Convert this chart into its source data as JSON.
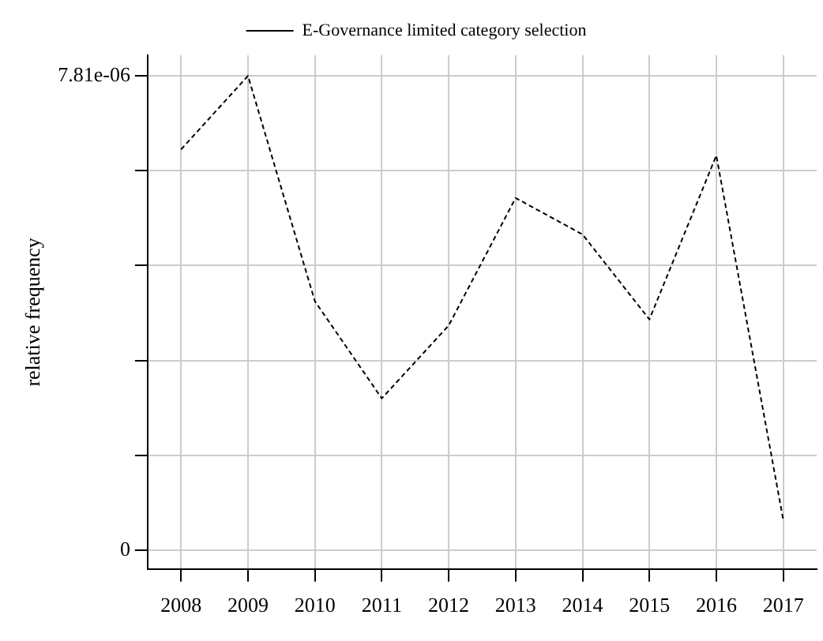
{
  "chart_data": {
    "type": "line",
    "ylabel": "relative frequency",
    "categories": [
      "2008",
      "2009",
      "2010",
      "2011",
      "2012",
      "2013",
      "2014",
      "2015",
      "2016",
      "2017"
    ],
    "series": [
      {
        "name": "E-Governance limited category selection",
        "color": "#000000",
        "values": [
          6.6e-06,
          7.81e-06,
          4.1e-06,
          2.5e-06,
          3.7e-06,
          5.8e-06,
          5.2e-06,
          3.8e-06,
          6.5e-06,
          5e-07
        ]
      }
    ],
    "ylim": [
      -3.1e-07,
      8.15e-06
    ],
    "yticks": [
      0,
      {
        "value": 1.562e-06,
        "label": null
      },
      {
        "value": 3.124e-06,
        "label": null
      },
      {
        "value": 4.686e-06,
        "label": null
      },
      {
        "value": 6.248e-06,
        "label": null
      },
      {
        "value": 7.81e-06,
        "label": "7.81e-06"
      }
    ],
    "grid": true,
    "legend": "top",
    "line_style": "dashed",
    "marker": "none"
  }
}
